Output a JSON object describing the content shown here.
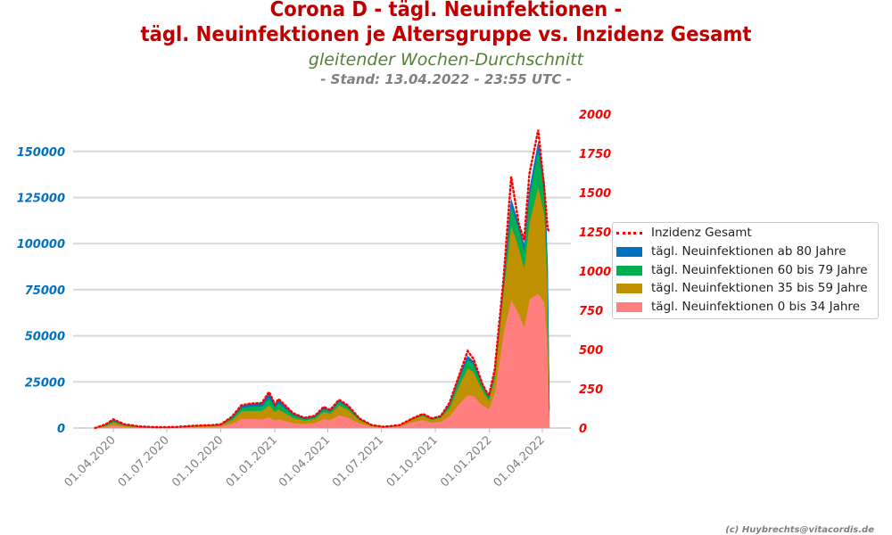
{
  "header": {
    "title_line1": "Corona D - tägl. Neuinfektionen -",
    "title_line2": "tägl. Neuinfektionen je Altersgruppe vs. Inzidenz Gesamt",
    "subtitle": "gleitender Wochen-Durchschnitt",
    "stand": "- Stand: 13.04.2022 - 23:55 UTC -"
  },
  "footer": "(c) Huybrechts@vitacordis.de",
  "colors": {
    "a80": "#0070c0",
    "a60": "#00b050",
    "a35": "#bf9000",
    "a0": "#ff7f7f",
    "inc": "#ff0000",
    "left_axis": "#0070c0",
    "right_axis": "#ff0000",
    "grid": "#d9d9d9",
    "tick": "#808080"
  },
  "chart_data": {
    "type": "area",
    "stacked": true,
    "title": "Corona D - tägl. Neuinfektionen - tägl. Neuinfektionen je Altersgruppe vs. Inzidenz Gesamt",
    "ylim_left": [
      0,
      175000
    ],
    "ylim_right": [
      0,
      2000
    ],
    "yticks_left": [
      "0",
      "25000",
      "50000",
      "75000",
      "100000",
      "125000",
      "150000"
    ],
    "yticks_right": [
      "0",
      "250",
      "500",
      "750",
      "1000",
      "1250",
      "1500",
      "1750",
      "2000"
    ],
    "xticks": [
      "01.04.2020",
      "01.07.2020",
      "01.10.2020",
      "01.01.2021",
      "01.04.2021",
      "01.07.2021",
      "01.10.2021",
      "01.01.2022",
      "01.04.2022"
    ],
    "xtick_dates": [
      "2020-04-01",
      "2020-07-01",
      "2020-10-01",
      "2021-01-01",
      "2021-04-01",
      "2021-07-01",
      "2021-10-01",
      "2022-01-01",
      "2022-04-01"
    ],
    "grid": true,
    "legend_position": "right",
    "legend": [
      "Inzidenz Gesamt",
      "tägl. Neuinfektionen ab 80 Jahre",
      "tägl. Neuinfektionen 60 bis 79 Jahre",
      "tägl. Neuinfektionen 35 bis 59 Jahre",
      "tägl. Neuinfektionen 0 bis 34 Jahre"
    ],
    "x": [
      "2020-03-01",
      "2020-03-20",
      "2020-04-01",
      "2020-04-20",
      "2020-05-15",
      "2020-06-15",
      "2020-07-15",
      "2020-08-15",
      "2020-09-15",
      "2020-10-01",
      "2020-10-20",
      "2020-11-05",
      "2020-11-20",
      "2020-12-10",
      "2020-12-22",
      "2021-01-01",
      "2021-01-07",
      "2021-02-01",
      "2021-02-20",
      "2021-03-10",
      "2021-03-25",
      "2021-04-05",
      "2021-04-20",
      "2021-05-05",
      "2021-05-25",
      "2021-06-15",
      "2021-07-05",
      "2021-08-01",
      "2021-08-25",
      "2021-09-10",
      "2021-09-25",
      "2021-10-10",
      "2021-10-25",
      "2021-11-10",
      "2021-11-25",
      "2021-12-05",
      "2021-12-20",
      "2021-12-31",
      "2022-01-10",
      "2022-01-25",
      "2022-02-07",
      "2022-02-20",
      "2022-03-01",
      "2022-03-10",
      "2022-03-25",
      "2022-04-05",
      "2022-04-10",
      "2022-04-13"
    ],
    "series": [
      {
        "name": "tägl. Neuinfektionen 0 bis 34 Jahre",
        "key": "a0",
        "axis": "left",
        "values": [
          0,
          700,
          1600,
          700,
          300,
          160,
          250,
          650,
          750,
          900,
          2500,
          5000,
          5000,
          4800,
          6000,
          4300,
          5000,
          2800,
          2300,
          2800,
          5000,
          4500,
          7000,
          5800,
          2600,
          800,
          450,
          1000,
          3500,
          4500,
          2900,
          3600,
          6500,
          13000,
          18000,
          17500,
          12500,
          10500,
          19000,
          52000,
          70000,
          62000,
          55000,
          70000,
          73000,
          68000,
          45000,
          5000
        ]
      },
      {
        "name": "tägl. Neuinfektionen 35 bis 59 Jahre",
        "key": "a35",
        "axis": "left",
        "values": [
          0,
          700,
          1600,
          700,
          280,
          140,
          170,
          400,
          500,
          650,
          2000,
          4200,
          4500,
          4600,
          6500,
          4500,
          5300,
          2800,
          1900,
          2300,
          3900,
          3300,
          5400,
          4300,
          1700,
          500,
          170,
          380,
          1500,
          2200,
          1500,
          2000,
          4300,
          9800,
          14500,
          13000,
          8200,
          4500,
          8000,
          22000,
          40000,
          36000,
          32000,
          42000,
          58000,
          48000,
          32000,
          4000
        ]
      },
      {
        "name": "tägl. Neuinfektionen 60 bis 79 Jahre",
        "key": "a60",
        "axis": "left",
        "values": [
          0,
          350,
          800,
          350,
          130,
          60,
          50,
          100,
          150,
          250,
          900,
          1800,
          2100,
          2400,
          4000,
          2600,
          3200,
          1500,
          800,
          900,
          1400,
          1200,
          1900,
          1400,
          500,
          150,
          60,
          90,
          370,
          600,
          450,
          650,
          1600,
          3800,
          5000,
          4300,
          2500,
          1500,
          2300,
          4500,
          11000,
          10000,
          9500,
          14000,
          20000,
          14000,
          9000,
          1000
        ]
      },
      {
        "name": "tägl. Neuinfektionen ab 80 Jahre",
        "key": "a80",
        "axis": "left",
        "values": [
          0,
          250,
          500,
          250,
          90,
          40,
          30,
          50,
          100,
          200,
          600,
          1000,
          1400,
          1700,
          2500,
          1600,
          2000,
          900,
          500,
          500,
          700,
          500,
          700,
          500,
          200,
          50,
          20,
          30,
          130,
          200,
          150,
          250,
          600,
          1400,
          1500,
          1200,
          800,
          500,
          700,
          1500,
          3000,
          2500,
          2500,
          3000,
          4000,
          3000,
          2000,
          300
        ]
      },
      {
        "name": "Inzidenz Gesamt",
        "key": "inc",
        "axis": "right",
        "values": [
          0,
          25,
          55,
          24,
          10,
          5,
          6,
          14,
          18,
          24,
          72,
          145,
          155,
          160,
          230,
          150,
          185,
          95,
          65,
          78,
          135,
          115,
          180,
          145,
          60,
          18,
          8,
          18,
          65,
          90,
          62,
          75,
          160,
          330,
          490,
          440,
          280,
          205,
          370,
          950,
          1600,
          1300,
          1200,
          1620,
          1900,
          1500,
          1270,
          1250
        ]
      }
    ]
  }
}
